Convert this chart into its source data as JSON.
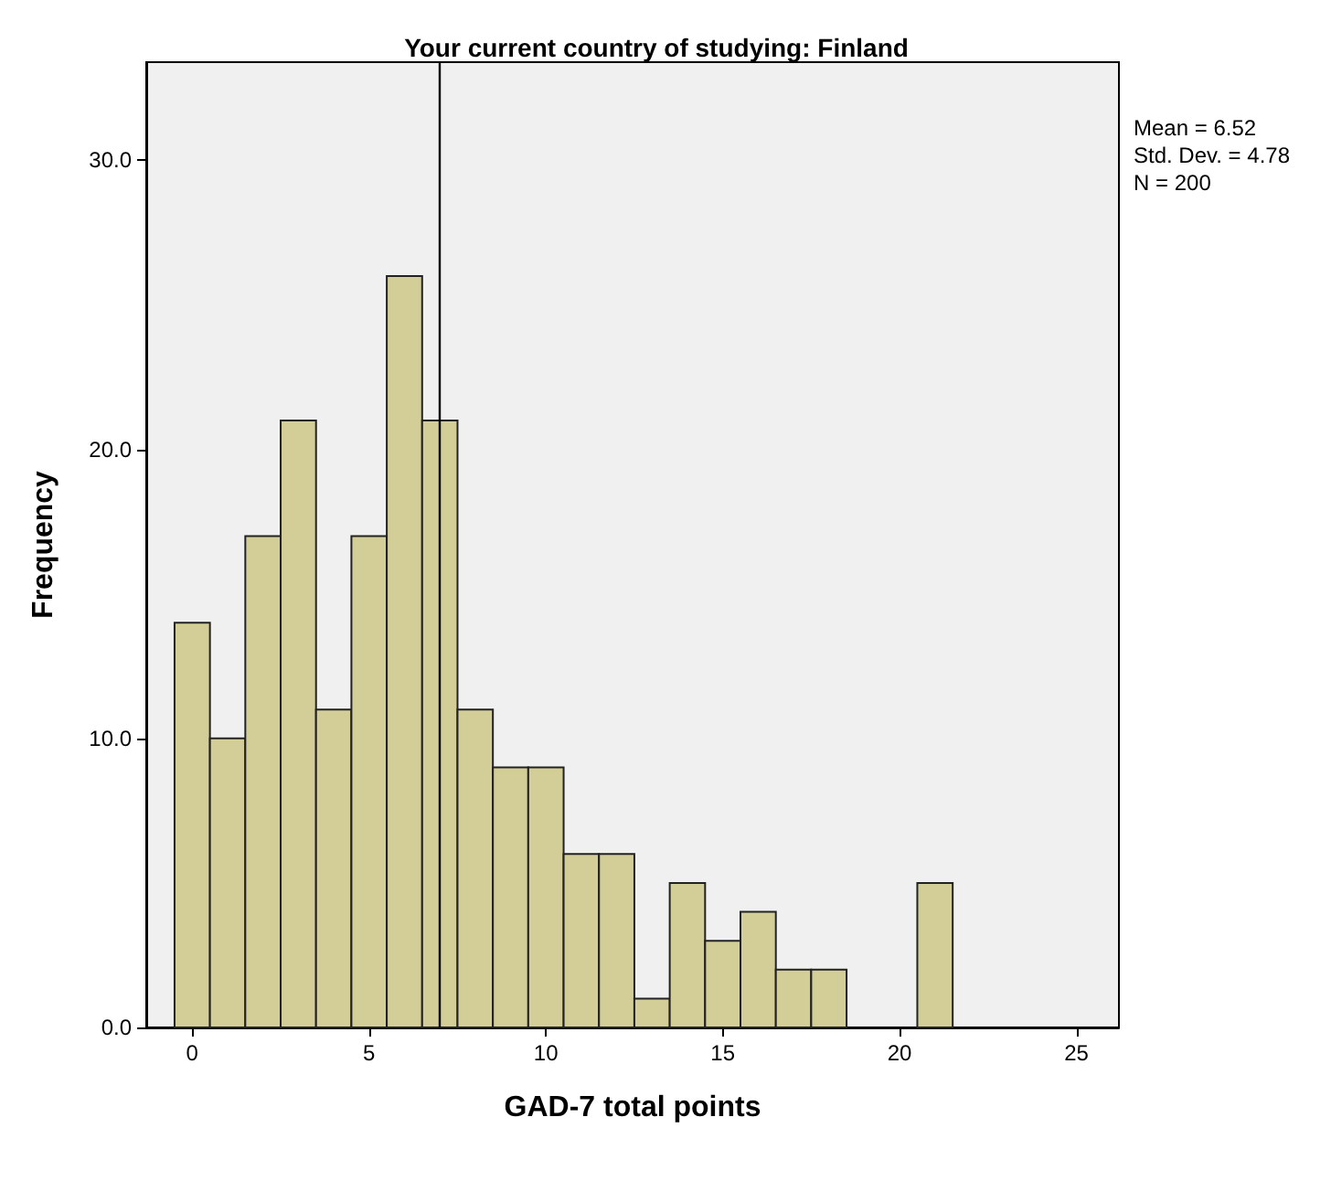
{
  "chart_data": {
    "type": "histogram",
    "title": "Your current country of studying: Finland",
    "xlabel": "GAD-7 total points",
    "ylabel": "Frequency",
    "bins": [
      -0.5,
      0.5,
      1.5,
      2.5,
      3.5,
      4.5,
      5.5,
      6.5,
      7.5,
      8.5,
      9.5,
      10.5,
      11.5,
      12.5,
      13.5,
      14.5,
      15.5,
      16.5,
      17.5,
      18.5,
      19.5,
      20.5,
      21.5
    ],
    "values": [
      14,
      10,
      17,
      21,
      11,
      17,
      26,
      21,
      11,
      9,
      9,
      6,
      6,
      1,
      5,
      3,
      4,
      2,
      2,
      0,
      0,
      5
    ],
    "color": "#d3ce98",
    "xlim": [
      -1.3,
      26.2
    ],
    "xticks": [
      0,
      5,
      10,
      15,
      20,
      25
    ],
    "ylim": [
      0,
      33.4
    ],
    "yticks": [
      {
        "value": 0,
        "label": "0.0"
      },
      {
        "value": 10,
        "label": "10.0"
      },
      {
        "value": 20,
        "label": "20.0"
      },
      {
        "value": 30,
        "label": "30.0"
      }
    ],
    "ref_lines": [
      {
        "axis": "x",
        "value": 7,
        "color": "#000000"
      }
    ],
    "annotations": [
      "Mean = 6.52",
      "Std. Dev. = 4.78",
      "N = 200"
    ],
    "grid": false
  }
}
